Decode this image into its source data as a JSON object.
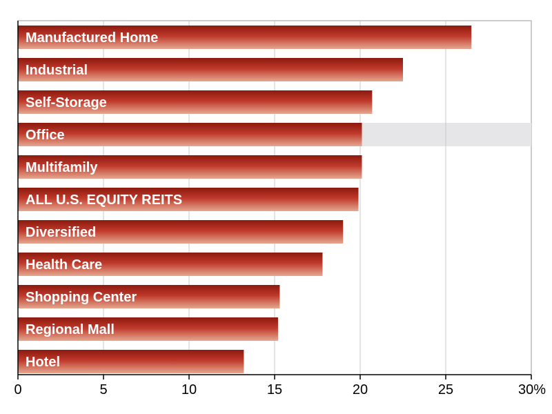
{
  "chart_data": {
    "type": "bar",
    "orientation": "horizontal",
    "title": "",
    "xlabel": "",
    "ylabel": "",
    "xlim": [
      0,
      30
    ],
    "grid": true,
    "highlighted_category": "Office",
    "colors": {
      "bar_top": "#8b1a0e",
      "bar_mid": "#c0392b",
      "bar_bottom": "#e4a890",
      "highlight_band": "#e6e6e8",
      "grid": "#c8c8c8",
      "axis": "#000000"
    },
    "x_ticks": [
      0,
      5,
      10,
      15,
      20,
      25,
      30
    ],
    "x_tick_labels": [
      "0",
      "5",
      "10",
      "15",
      "20",
      "25",
      "30%"
    ],
    "categories": [
      "Manufactured Home",
      "Industrial",
      "Self-Storage",
      "Office",
      "Multifamily",
      "ALL U.S. EQUITY REITS",
      "Diversified",
      "Health Care",
      "Shopping Center",
      "Regional Mall",
      "Hotel"
    ],
    "values": [
      26.5,
      22.5,
      20.7,
      20.1,
      20.1,
      19.9,
      19.0,
      17.8,
      15.3,
      15.2,
      13.2
    ]
  }
}
